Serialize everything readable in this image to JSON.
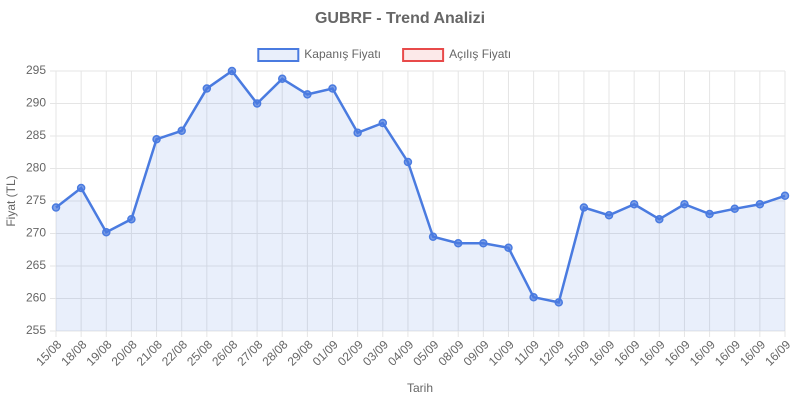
{
  "chart_data": {
    "type": "line",
    "title": "GUBRF - Trend Analizi",
    "x_label": "Tarih",
    "y_label": "Fiyat (TL)",
    "categories": [
      "15/08",
      "18/08",
      "19/08",
      "20/08",
      "21/08",
      "22/08",
      "25/08",
      "26/08",
      "27/08",
      "28/08",
      "29/08",
      "01/09",
      "02/09",
      "03/09",
      "04/09",
      "05/09",
      "08/09",
      "09/09",
      "10/09",
      "11/09",
      "12/09",
      "15/09",
      "16/09",
      "16/09",
      "16/09",
      "16/09",
      "16/09",
      "16/09",
      "16/09",
      "16/09"
    ],
    "series": [
      {
        "name": "Kapanış Fiyatı",
        "color": "#4a7be0",
        "fill": "rgba(74,123,224,0.12)",
        "values": [
          274,
          277,
          270.2,
          272.2,
          284.5,
          285.8,
          292.3,
          295,
          290,
          293.8,
          291.4,
          292.3,
          285.5,
          287,
          281,
          269.5,
          268.5,
          268.5,
          267.8,
          260.2,
          259.4,
          274,
          272.8,
          274.5,
          272.2,
          274.5,
          273,
          273.8,
          274.5,
          275.8
        ]
      },
      {
        "name": "Açılış Fiyatı",
        "color": "#e84a4a",
        "fill": "rgba(232,74,74,0.12)",
        "values": [
          null,
          null,
          null,
          null,
          null,
          null,
          null,
          null,
          null,
          null,
          null,
          null,
          null,
          null,
          null,
          null,
          null,
          null,
          null,
          null,
          null,
          null,
          null,
          null,
          null,
          null,
          null,
          null,
          null,
          null
        ]
      }
    ],
    "ylim": [
      255,
      295
    ],
    "yticks": [
      255,
      260,
      265,
      270,
      275,
      280,
      285,
      290,
      295
    ],
    "grid": true,
    "legend": "top"
  }
}
